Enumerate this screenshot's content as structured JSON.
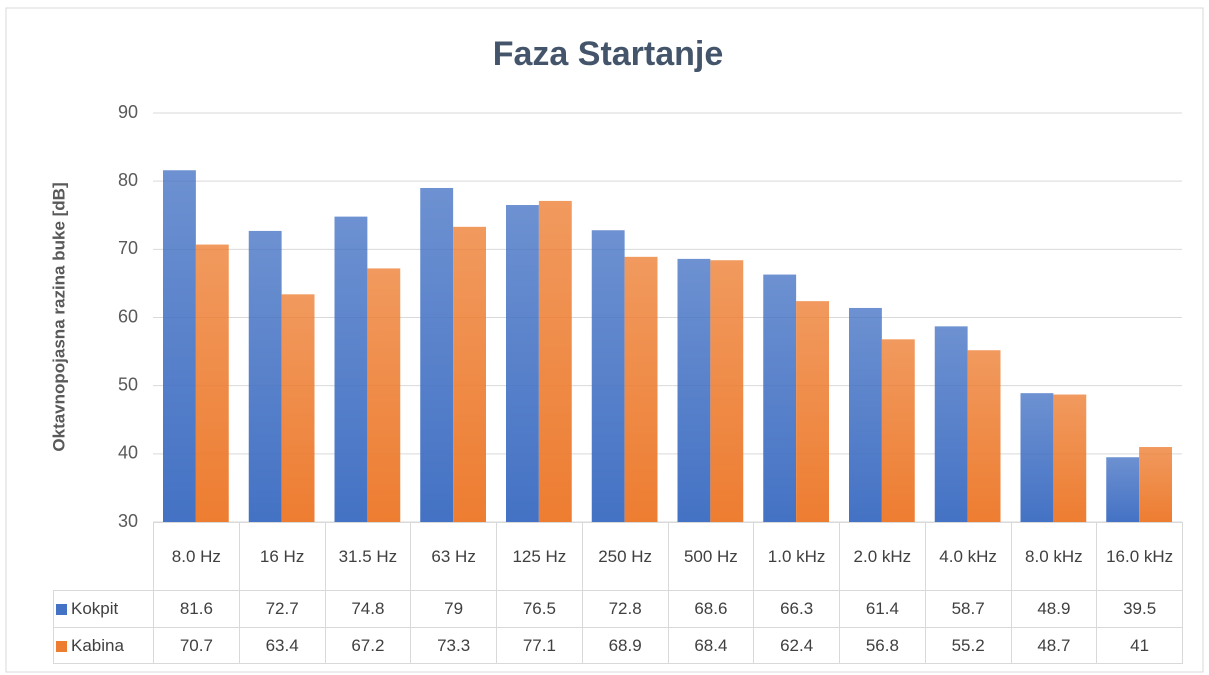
{
  "chart_data": {
    "type": "bar",
    "title": "Faza Startanje",
    "y_label": "Oktavnopojasna razina buke [dB]",
    "categories": [
      "8.0 Hz",
      "16 Hz",
      "31.5 Hz",
      "63 Hz",
      "125 Hz",
      "250 Hz",
      "500 Hz",
      "1.0 kHz",
      "2.0 kHz",
      "4.0 kHz",
      "8.0 kHz",
      "16.0 kHz"
    ],
    "series": [
      {
        "name": "Kokpit",
        "color": "#4472c4",
        "values": [
          81.6,
          72.7,
          74.8,
          79,
          76.5,
          72.8,
          68.6,
          66.3,
          61.4,
          58.7,
          48.9,
          39.5
        ]
      },
      {
        "name": "Kabina",
        "color": "#ed7d31",
        "values": [
          70.7,
          63.4,
          67.2,
          73.3,
          77.1,
          68.9,
          68.4,
          62.4,
          56.8,
          55.2,
          48.7,
          41
        ]
      }
    ],
    "ylim": [
      30,
      90
    ],
    "yticks": [
      30,
      40,
      50,
      60,
      70,
      80,
      90
    ],
    "grid": true,
    "data_table": true
  }
}
